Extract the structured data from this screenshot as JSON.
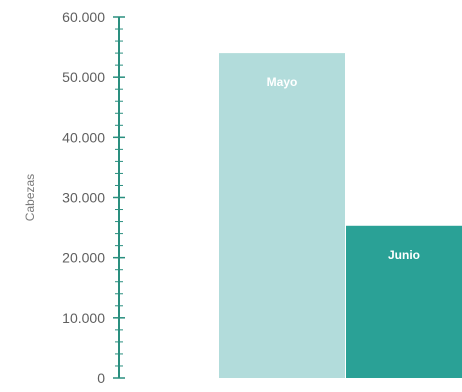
{
  "chart_data": {
    "type": "bar",
    "ylabel": "Cabezas",
    "ylim": [
      0,
      60000
    ],
    "yticks": [
      {
        "value": 0,
        "label": "0"
      },
      {
        "value": 10000,
        "label": "10.000"
      },
      {
        "value": 20000,
        "label": "20.000"
      },
      {
        "value": 30000,
        "label": "30.000"
      },
      {
        "value": 40000,
        "label": "40.000"
      },
      {
        "value": 50000,
        "label": "50.000"
      },
      {
        "value": 60000,
        "label": "60.000"
      }
    ],
    "minor_tick_step": 2000,
    "categories": [
      "Mayo",
      "Junio"
    ],
    "values": [
      54000,
      25300
    ],
    "colors": {
      "axis": "#2a8f7f",
      "bars": [
        "#b2dcdb",
        "#2aa196"
      ]
    },
    "grid": false,
    "legend": "none"
  }
}
